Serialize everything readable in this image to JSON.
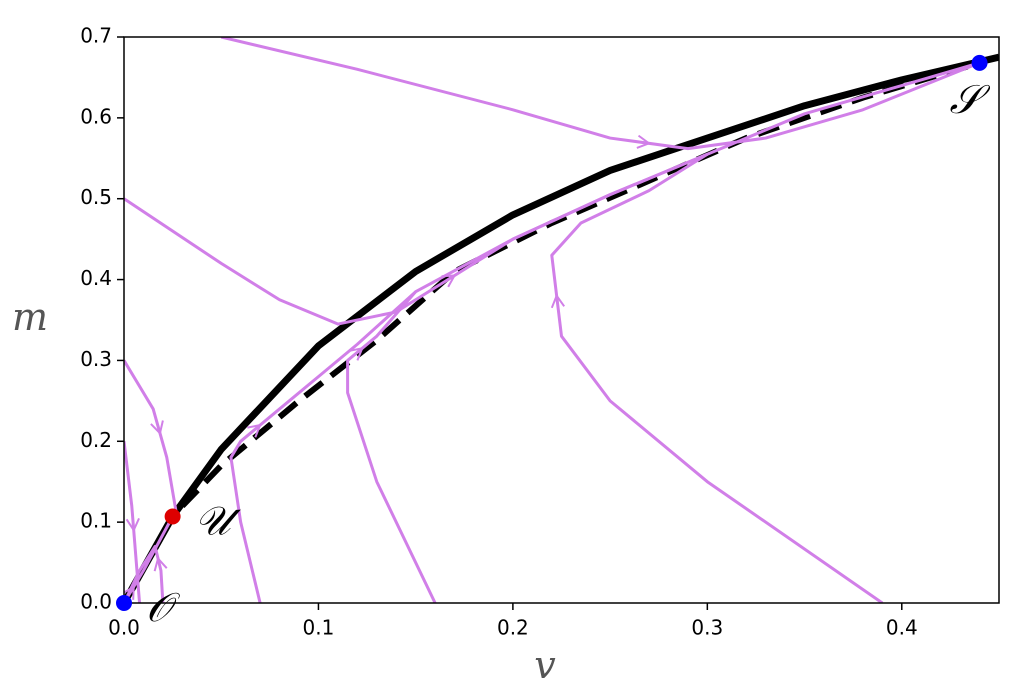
{
  "chart_data": {
    "type": "line",
    "x_label": "v",
    "y_label": "m",
    "xlim": [
      0,
      0.45
    ],
    "ylim": [
      0,
      0.7
    ],
    "xticks": [
      {
        "value": 0,
        "label": "0.0"
      },
      0.1,
      0.2,
      0.3,
      0.4
    ],
    "yticks": [
      {
        "value": 0,
        "label": "0.0"
      },
      0.1,
      0.2,
      0.3,
      0.4,
      0.5,
      0.6,
      0.7
    ],
    "series": [
      {
        "color": "#000000",
        "style": "dashed",
        "x": [
          0.03,
          0.05,
          0.09,
          0.13,
          0.17,
          0.22,
          0.265,
          0.32,
          0.38,
          0.44
        ],
        "values": [
          0.12,
          0.17,
          0.25,
          0.325,
          0.41,
          0.47,
          0.517,
          0.575,
          0.625,
          0.668
        ]
      },
      {
        "color": "#000000",
        "style": "solid",
        "x": [
          0,
          0.025,
          0.05,
          0.1,
          0.15,
          0.2,
          0.25,
          0.3,
          0.35,
          0.4,
          0.45
        ],
        "values": [
          0,
          0.107,
          0.19,
          0.318,
          0.41,
          0.48,
          0.535,
          0.575,
          0.615,
          0.647,
          0.675
        ]
      },
      {
        "color": "#d17fe8",
        "style": "arrowed",
        "x": [
          0.05,
          0.12,
          0.2,
          0.25,
          0.29,
          0.33,
          0.38,
          0.44
        ],
        "values": [
          0.7,
          0.66,
          0.61,
          0.575,
          0.562,
          0.575,
          0.61,
          0.668
        ]
      },
      {
        "color": "#d17fe8",
        "style": "arrowed",
        "x": [
          0,
          0.05,
          0.08,
          0.11,
          0.14,
          0.2,
          0.25,
          0.3,
          0.35,
          0.4,
          0.44
        ],
        "values": [
          0.5,
          0.42,
          0.375,
          0.345,
          0.36,
          0.45,
          0.505,
          0.555,
          0.605,
          0.64,
          0.668
        ]
      },
      {
        "color": "#d17fe8",
        "style": "arrowed",
        "x": [
          0.16,
          0.13,
          0.115,
          0.115,
          0.13,
          0.15,
          0.2,
          0.25,
          0.3
        ],
        "values": [
          0,
          0.15,
          0.26,
          0.3,
          0.33,
          0.385,
          0.45,
          0.505,
          0.555
        ]
      },
      {
        "color": "#d17fe8",
        "style": "arrowed",
        "x": [
          0.39,
          0.3,
          0.25,
          0.225,
          0.22,
          0.235,
          0.27,
          0.3
        ],
        "values": [
          0,
          0.15,
          0.25,
          0.33,
          0.43,
          0.47,
          0.51,
          0.555
        ]
      },
      {
        "color": "#d17fe8",
        "style": "arrowed",
        "x": [
          0.07,
          0.06,
          0.055,
          0.06,
          0.08,
          0.1,
          0.12,
          0.15
        ],
        "values": [
          0,
          0.1,
          0.18,
          0.2,
          0.24,
          0.28,
          0.32,
          0.385
        ]
      },
      {
        "color": "#d17fe8",
        "style": "arrowed",
        "x": [
          0,
          0.015,
          0.022,
          0.027
        ],
        "values": [
          0.3,
          0.24,
          0.18,
          0.11
        ]
      },
      {
        "color": "#d17fe8",
        "style": "arrowed",
        "x": [
          0,
          0.004,
          0.006,
          0.008
        ],
        "values": [
          0.2,
          0.12,
          0.06,
          0
        ]
      },
      {
        "color": "#d17fe8",
        "style": "arrowed",
        "x": [
          0.02,
          0.019,
          0.016,
          0.008,
          0
        ],
        "values": [
          0,
          0.04,
          0.07,
          0.04,
          0
        ]
      },
      {
        "color": "#d17fe8",
        "style": "arrowed",
        "x": [
          0,
          0.01,
          0.025
        ],
        "values": [
          0,
          0.04,
          0.107
        ]
      }
    ],
    "points": [
      {
        "x": 0,
        "y": 0,
        "color": "#0000ff",
        "label": "𝒪"
      },
      {
        "x": 0.025,
        "y": 0.107,
        "color": "#dd0000",
        "label": "𝒰"
      },
      {
        "x": 0.44,
        "y": 0.668,
        "color": "#0000ff",
        "label": "𝒮"
      }
    ]
  }
}
